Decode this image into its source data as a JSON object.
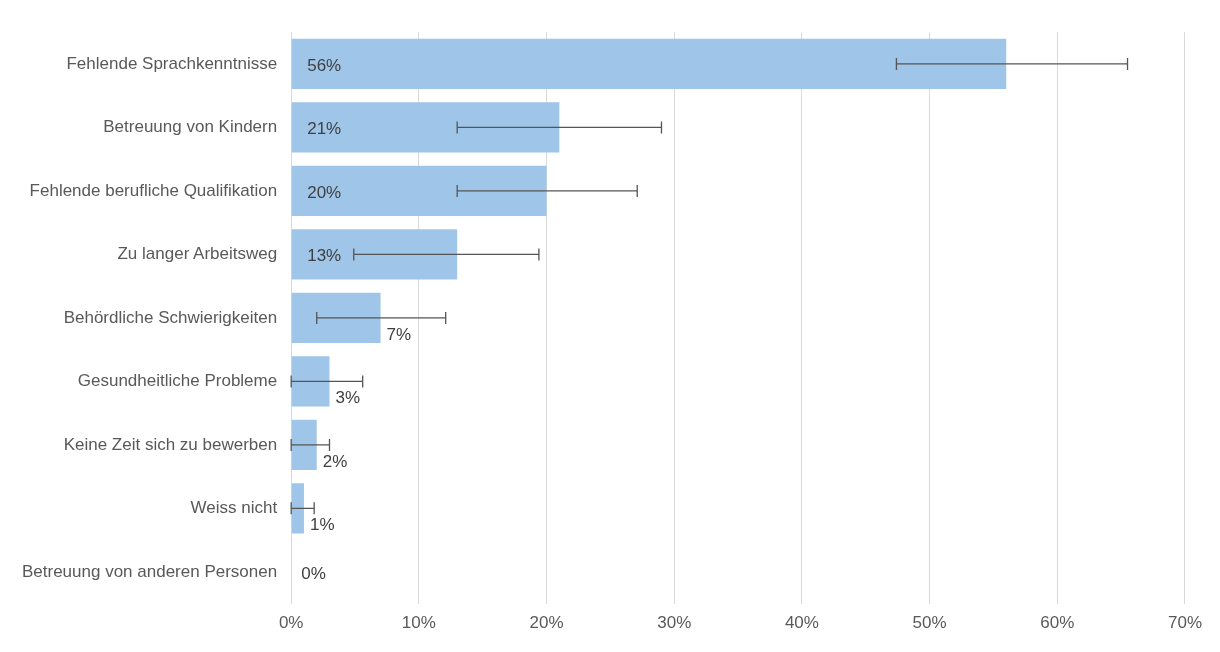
{
  "chart_data": {
    "type": "bar",
    "orientation": "horizontal",
    "categories": [
      "Fehlende Sprachkenntnisse",
      "Betreuung von Kindern",
      "Fehlende berufliche Qualifikation",
      "Zu langer Arbeitsweg",
      "Behördliche Schwierigkeiten",
      "Gesundheitliche Probleme",
      "Keine Zeit sich zu bewerben",
      "Weiss nicht",
      "Betreuung von anderen Personen"
    ],
    "values": [
      56,
      21,
      20,
      13,
      7,
      3,
      2,
      1,
      0
    ],
    "value_labels": [
      "56%",
      "21%",
      "20%",
      "13%",
      "7%",
      "3%",
      "2%",
      "1%",
      "0%"
    ],
    "errors": [
      [
        47.4,
        65.5
      ],
      [
        13,
        29
      ],
      [
        13,
        27.1
      ],
      [
        4.9,
        19.4
      ],
      [
        2,
        12.1
      ],
      [
        0,
        5.6
      ],
      [
        0,
        3
      ],
      [
        0,
        1.8
      ],
      null
    ],
    "color": "#9fc5e8",
    "xlim": [
      0,
      70
    ],
    "xticks": [
      {
        "value": 0,
        "label": "0%"
      },
      {
        "value": 10,
        "label": "10%"
      },
      {
        "value": 20,
        "label": "20%"
      },
      {
        "value": 30,
        "label": "30%"
      },
      {
        "value": 40,
        "label": "40%"
      },
      {
        "value": 50,
        "label": "50%"
      },
      {
        "value": 60,
        "label": "60%"
      },
      {
        "value": 70,
        "label": "70%"
      }
    ],
    "grid": "x",
    "legend": false
  }
}
